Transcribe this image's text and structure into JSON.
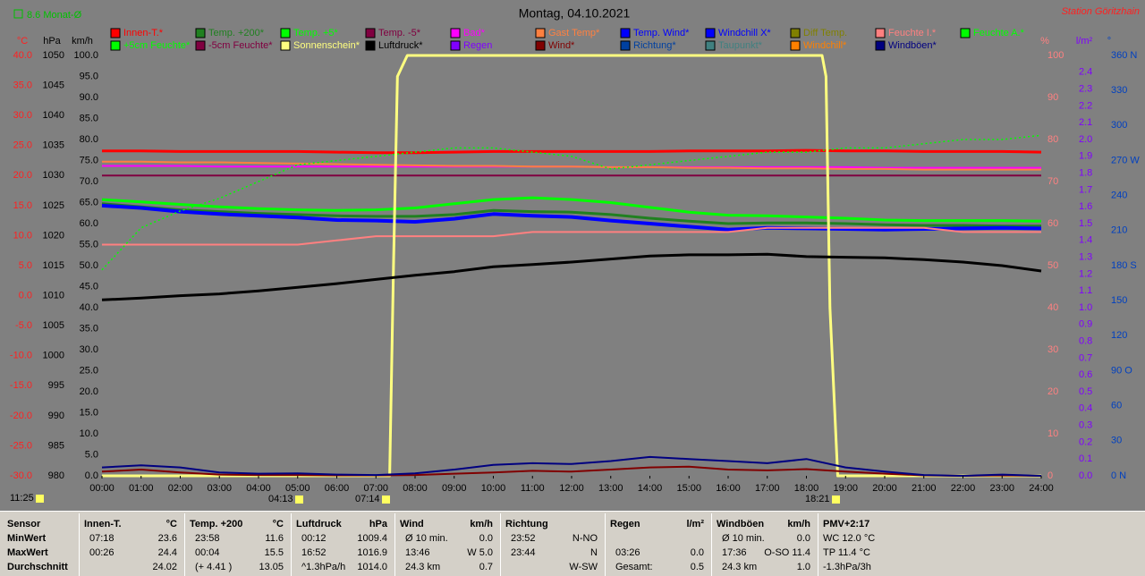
{
  "chart_data": {
    "type": "line",
    "title": "Montag, 04.10.2021",
    "station": "Station Göritzhain",
    "monthly_average": "8.6 Monat-Ø",
    "xlim": [
      0,
      24
    ],
    "xticks": [
      {
        "value": 0,
        "label": "00:00"
      },
      {
        "value": 1,
        "label": "01:00"
      },
      {
        "value": 2,
        "label": "02:00"
      },
      {
        "value": 3,
        "label": "03:00"
      },
      {
        "value": 4,
        "label": "04:00"
      },
      {
        "value": 5,
        "label": "05:00"
      },
      {
        "value": 6,
        "label": "06:00"
      },
      {
        "value": 7,
        "label": "07:00"
      },
      {
        "value": 8,
        "label": "08:00"
      },
      {
        "value": 9,
        "label": "09:00"
      },
      {
        "value": 10,
        "label": "10:00"
      },
      {
        "value": 11,
        "label": "11:00"
      },
      {
        "value": 12,
        "label": "12:00"
      },
      {
        "value": 13,
        "label": "13:00"
      },
      {
        "value": 14,
        "label": "14:00"
      },
      {
        "value": 15,
        "label": "15:00"
      },
      {
        "value": 16,
        "label": "16:00"
      },
      {
        "value": 17,
        "label": "17:00"
      },
      {
        "value": 18,
        "label": "18:00"
      },
      {
        "value": 19,
        "label": "19:00"
      },
      {
        "value": 20,
        "label": "20:00"
      },
      {
        "value": 21,
        "label": "21:00"
      },
      {
        "value": 22,
        "label": "22:00"
      },
      {
        "value": 23,
        "label": "23:00"
      },
      {
        "value": 24,
        "label": "24:00"
      }
    ],
    "x": [
      0,
      1,
      2,
      3,
      4,
      5,
      6,
      7,
      8,
      9,
      10,
      11,
      12,
      13,
      14,
      15,
      16,
      17,
      18,
      19,
      20,
      21,
      22,
      23,
      24
    ],
    "markers": [
      "11:25",
      "04:13",
      "07:14",
      "18:21"
    ],
    "axes": {
      "temp": {
        "unit": "°C",
        "color": "#ff2020",
        "lim": [
          -30,
          40
        ],
        "ticks": [
          {
            "value": 40,
            "label": "40.0"
          },
          {
            "value": 35,
            "label": "35.0"
          },
          {
            "value": 30,
            "label": "30.0"
          },
          {
            "value": 25,
            "label": "25.0"
          },
          {
            "value": 20,
            "label": "20.0"
          },
          {
            "value": 15,
            "label": "15.0"
          },
          {
            "value": 10,
            "label": "10.0"
          },
          {
            "value": 5,
            "label": "5.0"
          },
          {
            "value": 0,
            "label": "0.0"
          },
          {
            "value": -5,
            "label": "-5.0"
          },
          {
            "value": -10,
            "label": "-10.0"
          },
          {
            "value": -15,
            "label": "-15.0"
          },
          {
            "value": -20,
            "label": "-20.0"
          },
          {
            "value": -25,
            "label": "-25.0"
          },
          {
            "value": -30,
            "label": "-30.0"
          }
        ]
      },
      "pressure": {
        "unit": "hPa",
        "color": "#000000",
        "lim": [
          980,
          1050
        ],
        "ticks": [
          1050,
          1045,
          1040,
          1035,
          1030,
          1025,
          1020,
          1015,
          1010,
          1005,
          1000,
          995,
          990,
          985,
          980
        ]
      },
      "wind": {
        "unit": "km/h",
        "color": "#000000",
        "lim": [
          0,
          100
        ],
        "ticks": [
          {
            "value": 100,
            "label": "100.0"
          },
          {
            "value": 95,
            "label": "95.0"
          },
          {
            "value": 90,
            "label": "90.0"
          },
          {
            "value": 85,
            "label": "85.0"
          },
          {
            "value": 80,
            "label": "80.0"
          },
          {
            "value": 75,
            "label": "75.0"
          },
          {
            "value": 70,
            "label": "70.0"
          },
          {
            "value": 65,
            "label": "65.0"
          },
          {
            "value": 60,
            "label": "60.0"
          },
          {
            "value": 55,
            "label": "55.0"
          },
          {
            "value": 50,
            "label": "50.0"
          },
          {
            "value": 45,
            "label": "45.0"
          },
          {
            "value": 40,
            "label": "40.0"
          },
          {
            "value": 35,
            "label": "35.0"
          },
          {
            "value": 30,
            "label": "30.0"
          },
          {
            "value": 25,
            "label": "25.0"
          },
          {
            "value": 20,
            "label": "20.0"
          },
          {
            "value": 15,
            "label": "15.0"
          },
          {
            "value": 10,
            "label": "10.0"
          },
          {
            "value": 5,
            "label": "5.0"
          },
          {
            "value": 0,
            "label": "0.0"
          }
        ]
      },
      "percent": {
        "unit": "%",
        "color": "#ff8080",
        "lim": [
          0,
          100
        ],
        "ticks": [
          100,
          90,
          80,
          70,
          60,
          50,
          40,
          30,
          20,
          10,
          0
        ]
      },
      "rain": {
        "unit": "l/m²",
        "color": "#8000ff",
        "lim": [
          0,
          2.5
        ],
        "ticks": [
          2.4,
          2.3,
          2.2,
          2.1,
          {
            "value": 2,
            "label": "2.0"
          },
          1.9,
          1.8,
          1.7,
          1.6,
          1.5,
          1.4,
          1.3,
          1.2,
          1.1,
          {
            "value": 1,
            "label": "1.0"
          },
          0.9,
          0.8,
          0.7,
          0.6,
          0.5,
          0.4,
          0.3,
          0.2,
          0.1,
          {
            "value": 0,
            "label": "0.0"
          }
        ]
      },
      "direction": {
        "unit": "°",
        "color": "#0040c0",
        "lim": [
          0,
          360
        ],
        "ticks": [
          {
            "value": 360,
            "label": "360 N"
          },
          330,
          300,
          {
            "value": 270,
            "label": "270 W"
          },
          240,
          210,
          {
            "value": 180,
            "label": "180 S"
          },
          150,
          120,
          {
            "value": 90,
            "label": "90 O"
          },
          60,
          30,
          {
            "value": 0,
            "label": "0 N"
          }
        ]
      }
    },
    "series": [
      {
        "name": "Innen-T.*",
        "color": "#ff0000",
        "axis": "temp",
        "width": 3,
        "values": [
          24.1,
          24.1,
          24.0,
          24.0,
          24.0,
          24.0,
          23.9,
          23.8,
          23.8,
          23.9,
          24.0,
          24.0,
          24.0,
          24.0,
          24.0,
          24.1,
          24.1,
          24.1,
          24.2,
          24.1,
          24.1,
          24.0,
          24.0,
          24.0,
          23.9
        ]
      },
      {
        "name": "Temp. +200*",
        "color": "#208020",
        "axis": "temp",
        "width": 3,
        "values": [
          15.3,
          14.8,
          14.3,
          14.0,
          13.7,
          13.5,
          13.3,
          13.2,
          13.2,
          13.5,
          14.2,
          14.0,
          13.9,
          13.5,
          12.9,
          12.4,
          12.0,
          12.1,
          12.1,
          12.0,
          11.8,
          11.7,
          11.7,
          11.6,
          11.6
        ]
      },
      {
        "name": "Temp. +5*",
        "color": "#00ff00",
        "axis": "temp",
        "width": 3,
        "values": [
          16.0,
          15.6,
          15.2,
          14.8,
          14.5,
          14.3,
          14.2,
          14.3,
          14.6,
          15.3,
          16.0,
          16.3,
          16.0,
          15.5,
          14.7,
          13.9,
          13.4,
          13.3,
          13.1,
          12.9,
          12.6,
          12.5,
          12.5,
          12.5,
          12.4
        ]
      },
      {
        "name": "Temp. -5*",
        "color": "#800040",
        "axis": "temp",
        "width": 2,
        "values": [
          20.0,
          20.0,
          20.0,
          20.0,
          20.0,
          20.0,
          20.0,
          20.0,
          20.0,
          20.0,
          20.0,
          20.0,
          20.0,
          20.0,
          20.0,
          20.0,
          20.0,
          20.0,
          20.0,
          20.0,
          20.0,
          20.0,
          20.0,
          20.0,
          20.0
        ]
      },
      {
        "name": "Bad*",
        "color": "#ff00ff",
        "axis": "temp",
        "width": 2,
        "values": [
          21.6,
          21.6,
          21.6,
          21.5,
          21.5,
          21.5,
          21.5,
          21.5,
          21.5,
          21.5,
          21.5,
          21.5,
          21.5,
          21.4,
          21.4,
          21.4,
          21.4,
          21.4,
          21.4,
          21.4,
          21.3,
          21.3,
          21.3,
          21.3,
          21.3
        ]
      },
      {
        "name": "Gast Temp*",
        "color": "#ff8040",
        "axis": "temp",
        "width": 2,
        "values": [
          22.3,
          22.3,
          22.2,
          22.2,
          22.1,
          22.0,
          21.9,
          21.8,
          21.7,
          21.6,
          21.6,
          21.5,
          21.5,
          21.4,
          21.4,
          21.3,
          21.3,
          21.2,
          21.2,
          21.1,
          21.1,
          21.0,
          21.0,
          21.0,
          21.0
        ]
      },
      {
        "name": "Temp. Wind*",
        "color": "#0000ff"
      },
      {
        "name": "Windchill X*",
        "color": "#0000ff",
        "axis": "temp",
        "width": 4,
        "values": [
          15.0,
          14.6,
          14.0,
          13.6,
          13.3,
          13.0,
          12.6,
          12.5,
          12.3,
          12.8,
          13.6,
          13.3,
          13.1,
          12.5,
          12.0,
          11.5,
          11.0,
          11.3,
          11.2,
          11.1,
          11.0,
          11.1,
          11.2,
          11.3,
          11.2
        ]
      },
      {
        "name": "Diff Temp.",
        "color": "#808000"
      },
      {
        "name": "Feuchte I.*",
        "color": "#ff8080",
        "axis": "percent",
        "width": 2,
        "values": [
          55,
          55,
          55,
          55,
          55,
          55,
          56,
          57,
          57,
          57,
          57,
          58,
          58,
          58,
          58,
          58,
          58,
          59,
          59,
          59,
          59,
          59,
          58,
          58,
          58
        ]
      },
      {
        "name": "Feuchte A.*",
        "color": "#00ff00",
        "axis": "percent",
        "width": 1.5,
        "dash": "2,3",
        "values": [
          49,
          59,
          63,
          66,
          70,
          74,
          75,
          76,
          77,
          78,
          78,
          77,
          76,
          73,
          74,
          75,
          76,
          77,
          77,
          78,
          78,
          79,
          80,
          80,
          81
        ]
      },
      {
        "name": "+5cm Feuchte*",
        "color": "#00ff00"
      },
      {
        "name": "-5cm Feuchte*",
        "color": "#800040"
      },
      {
        "name": "Sonnenschein*",
        "color": "#ffff80",
        "axis": "percent",
        "width": 3,
        "x": [
          0,
          7.35,
          7.45,
          7.55,
          7.8,
          18.4,
          18.5,
          18.6,
          18.8,
          24
        ],
        "values": [
          0,
          0,
          50,
          95,
          100,
          100,
          95,
          40,
          0,
          0
        ]
      },
      {
        "name": "Luftdruck*",
        "color": "#000000",
        "axis": "pressure",
        "width": 3,
        "values": [
          1009.3,
          1009.6,
          1010.0,
          1010.3,
          1010.8,
          1011.4,
          1012.0,
          1012.7,
          1013.4,
          1014.0,
          1014.8,
          1015.2,
          1015.6,
          1016.1,
          1016.6,
          1016.8,
          1016.8,
          1016.9,
          1016.5,
          1016.4,
          1016.3,
          1016.0,
          1015.6,
          1015.0,
          1014.1
        ]
      },
      {
        "name": "Regen",
        "color": "#8000ff"
      },
      {
        "name": "Wind*",
        "color": "#800000",
        "axis": "wind",
        "width": 2,
        "values": [
          1.0,
          1.5,
          0.8,
          0.3,
          0.2,
          0.2,
          0.1,
          0.1,
          0.2,
          0.5,
          0.8,
          1.2,
          1.0,
          1.5,
          2.0,
          2.2,
          1.5,
          1.3,
          1.6,
          1.0,
          0.5,
          0.1,
          0.0,
          0.1,
          0.0
        ]
      },
      {
        "name": "Richtung*",
        "color": "#0040a0"
      },
      {
        "name": "Taupunkt*",
        "color": "#408080"
      },
      {
        "name": "Windchill*",
        "color": "#ff8000"
      },
      {
        "name": "Windböen*",
        "color": "#000080",
        "axis": "wind",
        "width": 2,
        "values": [
          2.0,
          2.5,
          2.0,
          0.8,
          0.5,
          0.6,
          0.3,
          0.2,
          0.6,
          1.5,
          2.6,
          3.0,
          2.8,
          3.5,
          4.5,
          4.0,
          3.5,
          3.0,
          4.0,
          2.0,
          1.0,
          0.2,
          0.0,
          0.3,
          0.0
        ]
      }
    ]
  },
  "summary": {
    "row_labels": [
      "Sensor",
      "MinWert",
      "MaxWert",
      "Durchschnitt"
    ],
    "columns": [
      {
        "header": "Innen-T.",
        "unit": "°C",
        "rows": [
          {
            "time": "07:18",
            "value": "23.6"
          },
          {
            "time": "00:26",
            "value": "24.4"
          },
          {
            "value": "24.02"
          }
        ]
      },
      {
        "header": "Temp. +200",
        "unit": "°C",
        "rows": [
          {
            "time": "23:58",
            "value": "11.6"
          },
          {
            "time": "00:04",
            "value": "15.5"
          },
          {
            "time": "(+ 4.41 )",
            "value": "13.05"
          }
        ]
      },
      {
        "header": "Luftdruck",
        "unit": "hPa",
        "rows": [
          {
            "time": "00:12",
            "value": "1009.4"
          },
          {
            "time": "16:52",
            "value": "1016.9"
          },
          {
            "time": "^1.3hPa/h",
            "value": "1014.0"
          }
        ]
      },
      {
        "header": "Wind",
        "unit": "km/h",
        "rows": [
          {
            "time": "Ø 10 min.",
            "value": "0.0"
          },
          {
            "time": "13:46",
            "value": "W 5.0"
          },
          {
            "time": "24.3 km",
            "value": "0.7"
          }
        ]
      },
      {
        "header": "Richtung",
        "rows": [
          {
            "time": "23:52",
            "value": "N-NO"
          },
          {
            "time": "23:44",
            "value": "N"
          },
          {
            "value": "W-SW"
          }
        ]
      },
      {
        "header": "Regen",
        "unit": "l/m²",
        "rows": [
          null,
          {
            "time": "03:26",
            "value": "0.0"
          },
          {
            "time": "Gesamt:",
            "value": "0.5"
          }
        ]
      },
      {
        "header": "Windböen",
        "unit": "km/h",
        "rows": [
          {
            "time": "Ø 10 min.",
            "value": "0.0"
          },
          {
            "time": "17:36",
            "value": "O-SO 11.4"
          },
          {
            "time": "24.3 km",
            "value": "1.0"
          }
        ]
      },
      {
        "header": "PMV+2:17",
        "rows": [
          {
            "value": "WC 12.0 °C"
          },
          {
            "value": "TP 11.4 °C"
          },
          {
            "value": "-1.3hPa/3h"
          }
        ]
      }
    ]
  }
}
